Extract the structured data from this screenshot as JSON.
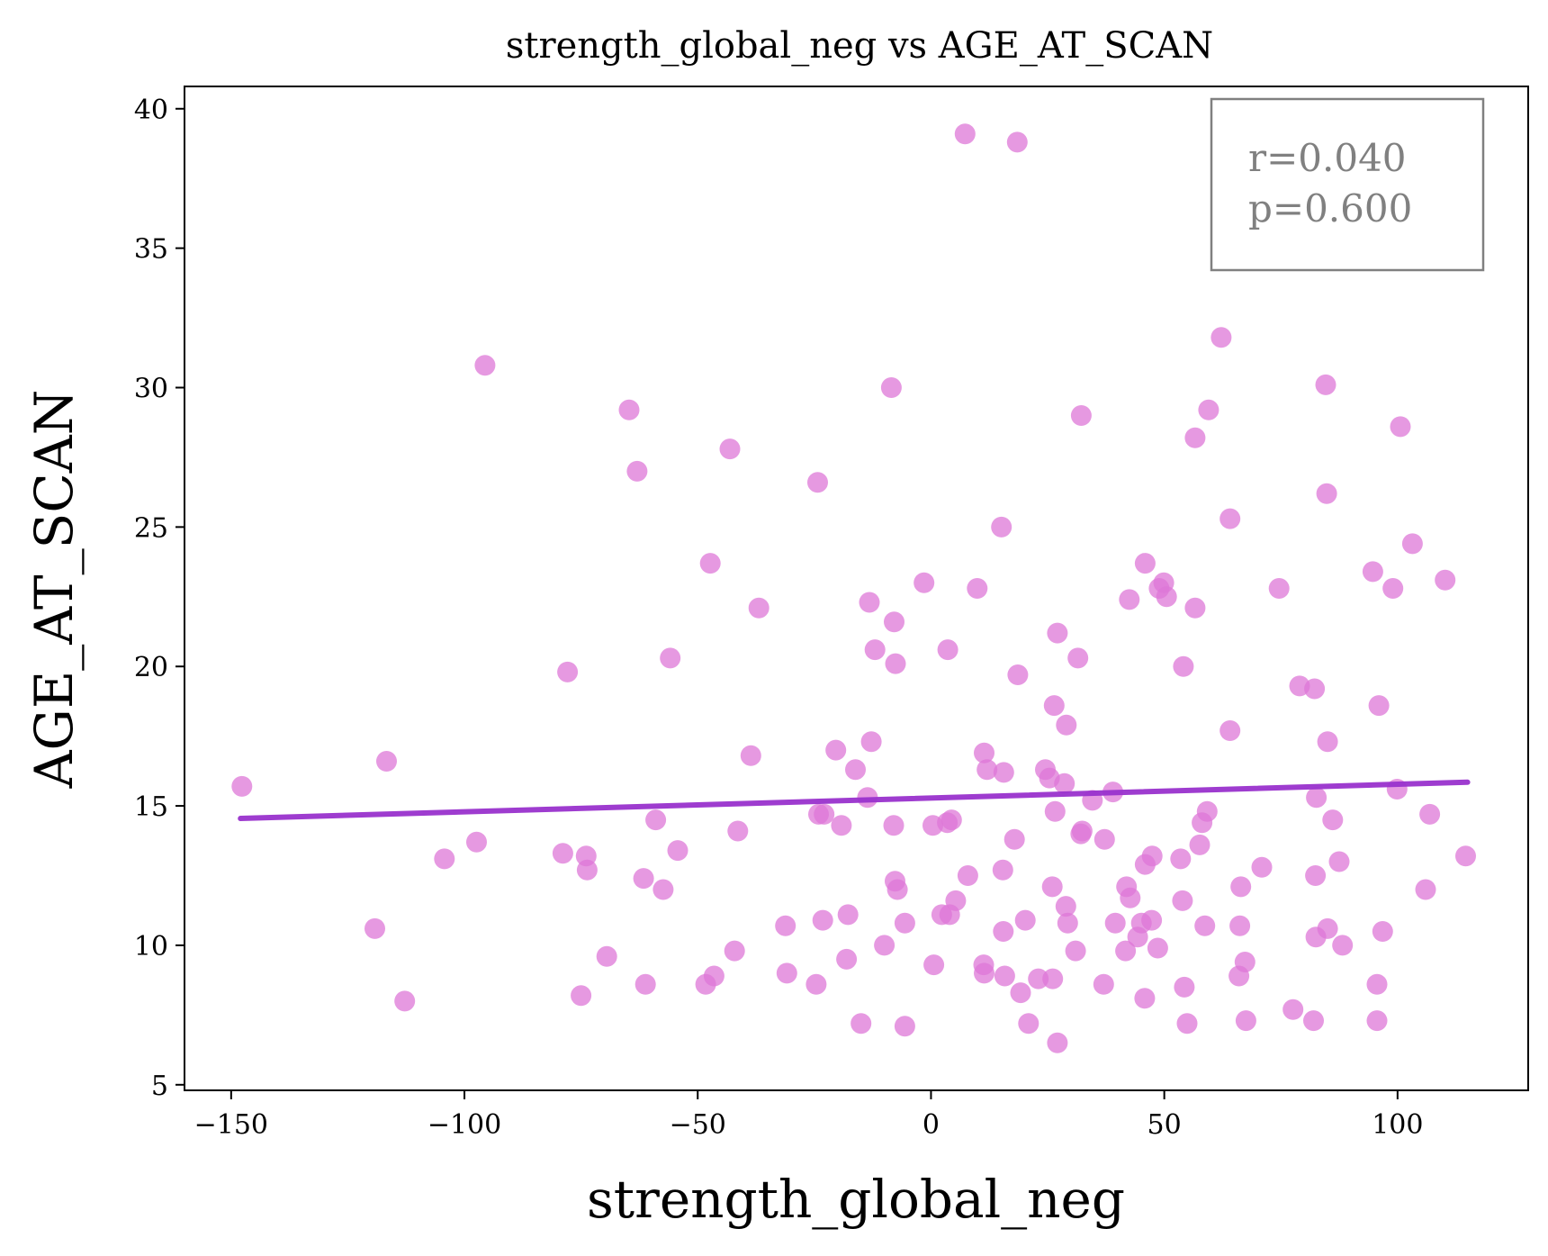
{
  "chart_data": {
    "type": "scatter",
    "title": "strength_global_neg vs AGE_AT_SCAN",
    "xlabel": "strength_global_neg",
    "ylabel": "AGE_AT_SCAN",
    "xlim": [
      -160,
      128
    ],
    "ylim": [
      4.8,
      40.8
    ],
    "xticks": [
      -150,
      -100,
      -50,
      0,
      50,
      100
    ],
    "xtick_labels": [
      "−150",
      "−100",
      "−50",
      "0",
      "50",
      "100"
    ],
    "yticks": [
      5,
      10,
      15,
      20,
      25,
      30,
      35,
      40
    ],
    "ytick_labels": [
      "5",
      "10",
      "15",
      "20",
      "25",
      "30",
      "35",
      "40"
    ],
    "grid": false,
    "legend": "none",
    "colors": {
      "points": "#dd77d7",
      "fit_line": "#9932cc",
      "stats_box": "#808080"
    },
    "annotation": {
      "r": "r=0.040",
      "p": "p=0.600",
      "placement": "top-right"
    },
    "fit_line": {
      "x": [
        -148,
        115
      ],
      "y": [
        14.55,
        15.85
      ]
    },
    "points": [
      {
        "x": 7.3,
        "y": 39.1
      },
      {
        "x": 18.5,
        "y": 38.8
      },
      {
        "x": -95.6,
        "y": 30.8
      },
      {
        "x": 62.2,
        "y": 31.8
      },
      {
        "x": -8.5,
        "y": 30.0
      },
      {
        "x": 84.6,
        "y": 30.1
      },
      {
        "x": -64.7,
        "y": 29.2
      },
      {
        "x": 59.5,
        "y": 29.2
      },
      {
        "x": 32.2,
        "y": 29.0
      },
      {
        "x": 100.6,
        "y": 28.6
      },
      {
        "x": 56.6,
        "y": 28.2
      },
      {
        "x": -43.1,
        "y": 27.8
      },
      {
        "x": -63.0,
        "y": 27.0
      },
      {
        "x": -24.3,
        "y": 26.6
      },
      {
        "x": 84.8,
        "y": 26.2
      },
      {
        "x": 64.1,
        "y": 25.3
      },
      {
        "x": 15.1,
        "y": 25.0
      },
      {
        "x": 103.2,
        "y": 24.4
      },
      {
        "x": -47.3,
        "y": 23.7
      },
      {
        "x": 45.9,
        "y": 23.7
      },
      {
        "x": 94.7,
        "y": 23.4
      },
      {
        "x": 110.2,
        "y": 23.1
      },
      {
        "x": -1.5,
        "y": 23.0
      },
      {
        "x": 49.9,
        "y": 23.0
      },
      {
        "x": 74.6,
        "y": 22.8
      },
      {
        "x": 9.9,
        "y": 22.8
      },
      {
        "x": 48.9,
        "y": 22.8
      },
      {
        "x": 99.0,
        "y": 22.8
      },
      {
        "x": 50.5,
        "y": 22.5
      },
      {
        "x": 42.5,
        "y": 22.4
      },
      {
        "x": -13.2,
        "y": 22.3
      },
      {
        "x": -36.9,
        "y": 22.1
      },
      {
        "x": 56.6,
        "y": 22.1
      },
      {
        "x": -7.9,
        "y": 21.6
      },
      {
        "x": 27.1,
        "y": 21.2
      },
      {
        "x": -12.0,
        "y": 20.6
      },
      {
        "x": 3.6,
        "y": 20.6
      },
      {
        "x": -55.9,
        "y": 20.3
      },
      {
        "x": 31.5,
        "y": 20.3
      },
      {
        "x": -7.6,
        "y": 20.1
      },
      {
        "x": 54.1,
        "y": 20.0
      },
      {
        "x": -77.9,
        "y": 19.8
      },
      {
        "x": 18.6,
        "y": 19.7
      },
      {
        "x": 79.0,
        "y": 19.3
      },
      {
        "x": 82.2,
        "y": 19.2
      },
      {
        "x": 26.4,
        "y": 18.6
      },
      {
        "x": 96.0,
        "y": 18.6
      },
      {
        "x": 29.0,
        "y": 17.9
      },
      {
        "x": 64.1,
        "y": 17.7
      },
      {
        "x": -12.8,
        "y": 17.3
      },
      {
        "x": 85.0,
        "y": 17.3
      },
      {
        "x": -20.4,
        "y": 17.0
      },
      {
        "x": 11.4,
        "y": 16.9
      },
      {
        "x": -38.6,
        "y": 16.8
      },
      {
        "x": -116.7,
        "y": 16.6
      },
      {
        "x": -16.2,
        "y": 16.3
      },
      {
        "x": 12.0,
        "y": 16.3
      },
      {
        "x": 24.5,
        "y": 16.3
      },
      {
        "x": 15.6,
        "y": 16.2
      },
      {
        "x": 25.4,
        "y": 16.0
      },
      {
        "x": 28.6,
        "y": 15.8
      },
      {
        "x": -147.7,
        "y": 15.7
      },
      {
        "x": 99.9,
        "y": 15.6
      },
      {
        "x": 39.0,
        "y": 15.5
      },
      {
        "x": -13.6,
        "y": 15.3
      },
      {
        "x": 82.6,
        "y": 15.3
      },
      {
        "x": 34.6,
        "y": 15.2
      },
      {
        "x": 26.6,
        "y": 14.8
      },
      {
        "x": 59.2,
        "y": 14.8
      },
      {
        "x": -24.1,
        "y": 14.7
      },
      {
        "x": -22.9,
        "y": 14.7
      },
      {
        "x": 106.9,
        "y": 14.7
      },
      {
        "x": 4.4,
        "y": 14.5
      },
      {
        "x": -59.0,
        "y": 14.5
      },
      {
        "x": 86.1,
        "y": 14.5
      },
      {
        "x": 3.5,
        "y": 14.4
      },
      {
        "x": 58.1,
        "y": 14.4
      },
      {
        "x": -19.2,
        "y": 14.3
      },
      {
        "x": -8.0,
        "y": 14.3
      },
      {
        "x": 0.4,
        "y": 14.3
      },
      {
        "x": -41.4,
        "y": 14.1
      },
      {
        "x": 32.4,
        "y": 14.1
      },
      {
        "x": 32.1,
        "y": 14.0
      },
      {
        "x": 37.2,
        "y": 13.8
      },
      {
        "x": 17.9,
        "y": 13.8
      },
      {
        "x": -97.4,
        "y": 13.7
      },
      {
        "x": 57.6,
        "y": 13.6
      },
      {
        "x": -54.3,
        "y": 13.4
      },
      {
        "x": -78.9,
        "y": 13.3
      },
      {
        "x": -73.9,
        "y": 13.2
      },
      {
        "x": 47.4,
        "y": 13.2
      },
      {
        "x": 114.6,
        "y": 13.2
      },
      {
        "x": -104.3,
        "y": 13.1
      },
      {
        "x": 53.5,
        "y": 13.1
      },
      {
        "x": 87.5,
        "y": 13.0
      },
      {
        "x": 45.9,
        "y": 12.9
      },
      {
        "x": 70.9,
        "y": 12.8
      },
      {
        "x": -73.7,
        "y": 12.7
      },
      {
        "x": 15.4,
        "y": 12.7
      },
      {
        "x": 82.4,
        "y": 12.5
      },
      {
        "x": 7.9,
        "y": 12.5
      },
      {
        "x": -61.6,
        "y": 12.4
      },
      {
        "x": -7.7,
        "y": 12.3
      },
      {
        "x": 26.0,
        "y": 12.1
      },
      {
        "x": 41.9,
        "y": 12.1
      },
      {
        "x": 66.4,
        "y": 12.1
      },
      {
        "x": -57.4,
        "y": 12.0
      },
      {
        "x": -7.2,
        "y": 12.0
      },
      {
        "x": 106.0,
        "y": 12.0
      },
      {
        "x": 42.7,
        "y": 11.7
      },
      {
        "x": 53.9,
        "y": 11.6
      },
      {
        "x": 5.3,
        "y": 11.6
      },
      {
        "x": 28.9,
        "y": 11.4
      },
      {
        "x": 2.3,
        "y": 11.1
      },
      {
        "x": 4.0,
        "y": 11.1
      },
      {
        "x": -17.8,
        "y": 11.1
      },
      {
        "x": 47.3,
        "y": 10.9
      },
      {
        "x": -23.2,
        "y": 10.9
      },
      {
        "x": 20.2,
        "y": 10.9
      },
      {
        "x": 45.1,
        "y": 10.8
      },
      {
        "x": 39.5,
        "y": 10.8
      },
      {
        "x": 29.3,
        "y": 10.8
      },
      {
        "x": -5.6,
        "y": 10.8
      },
      {
        "x": 58.7,
        "y": 10.7
      },
      {
        "x": 66.2,
        "y": 10.7
      },
      {
        "x": -31.2,
        "y": 10.7
      },
      {
        "x": 15.5,
        "y": 10.5
      },
      {
        "x": -119.2,
        "y": 10.6
      },
      {
        "x": 96.8,
        "y": 10.5
      },
      {
        "x": 85.0,
        "y": 10.6
      },
      {
        "x": 44.3,
        "y": 10.3
      },
      {
        "x": 82.5,
        "y": 10.3
      },
      {
        "x": -10.0,
        "y": 10.0
      },
      {
        "x": 88.2,
        "y": 10.0
      },
      {
        "x": 48.6,
        "y": 9.9
      },
      {
        "x": 31.0,
        "y": 9.8
      },
      {
        "x": -42.1,
        "y": 9.8
      },
      {
        "x": 41.7,
        "y": 9.8
      },
      {
        "x": -69.5,
        "y": 9.6
      },
      {
        "x": -18.1,
        "y": 9.5
      },
      {
        "x": 67.3,
        "y": 9.4
      },
      {
        "x": 11.3,
        "y": 9.3
      },
      {
        "x": 0.6,
        "y": 9.3
      },
      {
        "x": -30.9,
        "y": 9.0
      },
      {
        "x": -46.5,
        "y": 8.9
      },
      {
        "x": 11.4,
        "y": 9.0
      },
      {
        "x": 15.8,
        "y": 8.9
      },
      {
        "x": 66.0,
        "y": 8.9
      },
      {
        "x": 23.0,
        "y": 8.8
      },
      {
        "x": 26.1,
        "y": 8.8
      },
      {
        "x": -24.6,
        "y": 8.6
      },
      {
        "x": -61.2,
        "y": 8.6
      },
      {
        "x": -48.3,
        "y": 8.6
      },
      {
        "x": 37.0,
        "y": 8.6
      },
      {
        "x": 54.3,
        "y": 8.5
      },
      {
        "x": 95.6,
        "y": 8.6
      },
      {
        "x": 19.2,
        "y": 8.3
      },
      {
        "x": -75.0,
        "y": 8.2
      },
      {
        "x": 45.8,
        "y": 8.1
      },
      {
        "x": -112.8,
        "y": 8.0
      },
      {
        "x": 77.6,
        "y": 7.7
      },
      {
        "x": 82.0,
        "y": 7.3
      },
      {
        "x": 95.6,
        "y": 7.3
      },
      {
        "x": -15.0,
        "y": 7.2
      },
      {
        "x": 20.9,
        "y": 7.2
      },
      {
        "x": 54.9,
        "y": 7.2
      },
      {
        "x": -5.6,
        "y": 7.1
      },
      {
        "x": 67.5,
        "y": 7.3
      },
      {
        "x": 27.1,
        "y": 6.5
      }
    ]
  }
}
